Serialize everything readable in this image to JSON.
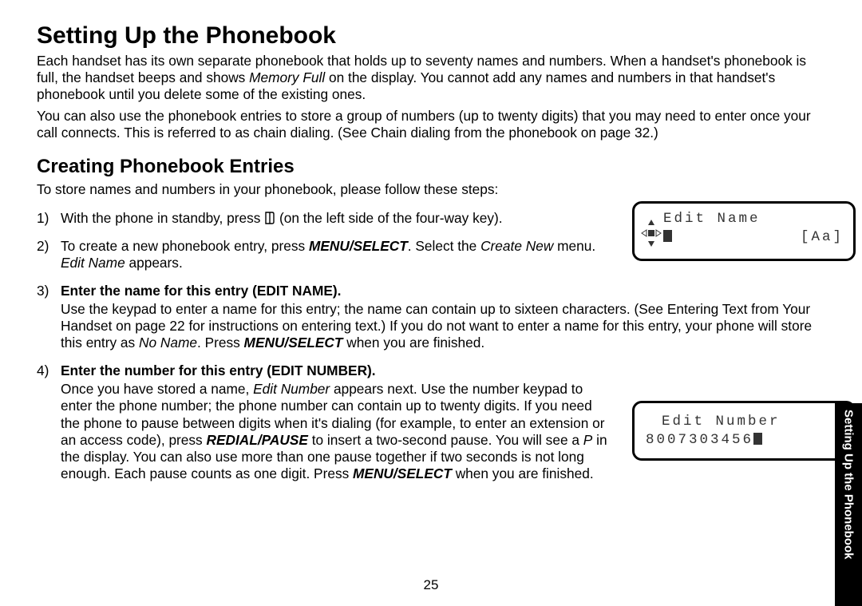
{
  "title": "Setting Up the Phonebook",
  "intro1_html": "Each handset has its own separate phonebook that holds up to seventy names and numbers. When a handset's phonebook is full, the handset beeps and shows <span class=\"italic\">Memory Full</span> on the display. You cannot add any names and numbers in that handset's phonebook until you delete some of the existing ones.",
  "intro2": "You can also use the phonebook entries to store a group of numbers (up to twenty digits) that you may need to enter once your call connects. This is referred to as chain dialing. (See Chain dialing from the phonebook on page 32.)",
  "subtitle": "Creating Phonebook Entries",
  "subintro": "To store names and numbers in your phonebook, please follow these steps:",
  "step1_before": "With the phone in standby, press ",
  "step1_after": " (on the left side of the four-way key).",
  "step2_html": "To create a new phonebook entry, press <span class=\"bolditalic\">MENU/SELECT</span>. Select the <span class=\"italic\">Create New</span> menu. <span class=\"italic\">Edit Name</span> appears.",
  "step3_title": "Enter the name for this entry (EDIT NAME).",
  "step3_body_html": "Use the keypad to enter a name for this entry; the name can contain up to sixteen characters. (See Entering Text from Your Handset on page 22 for instructions on entering text.) If you do not want to enter a name for this entry, your phone will store this entry as <span class=\"italic\">No Name</span>. Press <span class=\"bolditalic\">MENU/SELECT</span> when you are finished.",
  "step4_title": "Enter the number for this entry (EDIT NUMBER).",
  "step4_body_html": "Once you have stored a name, <span class=\"italic\">Edit Number</span> appears next. Use the number keypad to enter the phone number; the phone number can contain up to twenty digits. If you need the phone to pause between digits when it's dialing (for example, to enter an extension or an access code), press <span class=\"bolditalic\">REDIAL/PAUSE</span> to insert a two-second pause. You will see a <span class=\"italic\">P</span> in the display. You can also use more than one pause together if two seconds is not long enough. Each pause counts as one digit. Press <span class=\"bolditalic\">MENU/SELECT</span> when you are finished.",
  "lcd1_line1": "Edit Name",
  "lcd1_line2": "[Aa]",
  "lcd2_line1": "Edit Number",
  "lcd2_line2": "8007303456",
  "side_tab": "Setting Up the Phonebook",
  "page_number": "25",
  "colors": {
    "text": "#000000",
    "bg": "#ffffff",
    "lcd_text": "#333333"
  },
  "fonts": {
    "body_family": "Arial, Helvetica, sans-serif",
    "mono_family": "Courier New, monospace",
    "h1_size_pt": 22,
    "h2_size_pt": 18,
    "body_size_pt": 13
  }
}
